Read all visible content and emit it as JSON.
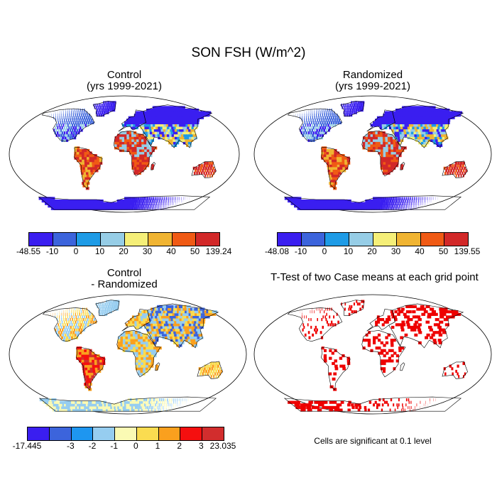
{
  "title": "SON FSH (W/m^2)",
  "panels": {
    "control": {
      "title": "Control",
      "subtitle": "(yrs 1999-2021)",
      "labels": [
        "-48.55",
        "-10",
        "0",
        "10",
        "20",
        "30",
        "40",
        "50",
        "139.24"
      ]
    },
    "randomized": {
      "title": "Randomized",
      "subtitle": "(yrs 1999-2021)",
      "labels": [
        "-48.08",
        "-10",
        "0",
        "10",
        "20",
        "30",
        "40",
        "50",
        "139.55"
      ]
    },
    "diff": {
      "title": "Control",
      "subtitle": "- Randomized",
      "labels": [
        "-17.445",
        "-3",
        "-2",
        "-1",
        "0",
        "1",
        "2",
        "3",
        "23.035"
      ]
    },
    "ttest": {
      "title": "T-Test of two Case means at each grid point",
      "note": "Cells are significant at 0.1 level"
    }
  },
  "colors": {
    "flux_scale": [
      "#3a1ef0",
      "#3c64dc",
      "#1e9be6",
      "#96cde6",
      "#f5ef78",
      "#f0b432",
      "#f05a14",
      "#d22828"
    ],
    "diff_scale": [
      "#3a1ef0",
      "#3c64dc",
      "#1e96f0",
      "#96cdf0",
      "#fafab4",
      "#fadc50",
      "#faa01e",
      "#f50f0f",
      "#d22d2d"
    ],
    "significant": "#ee0000"
  }
}
